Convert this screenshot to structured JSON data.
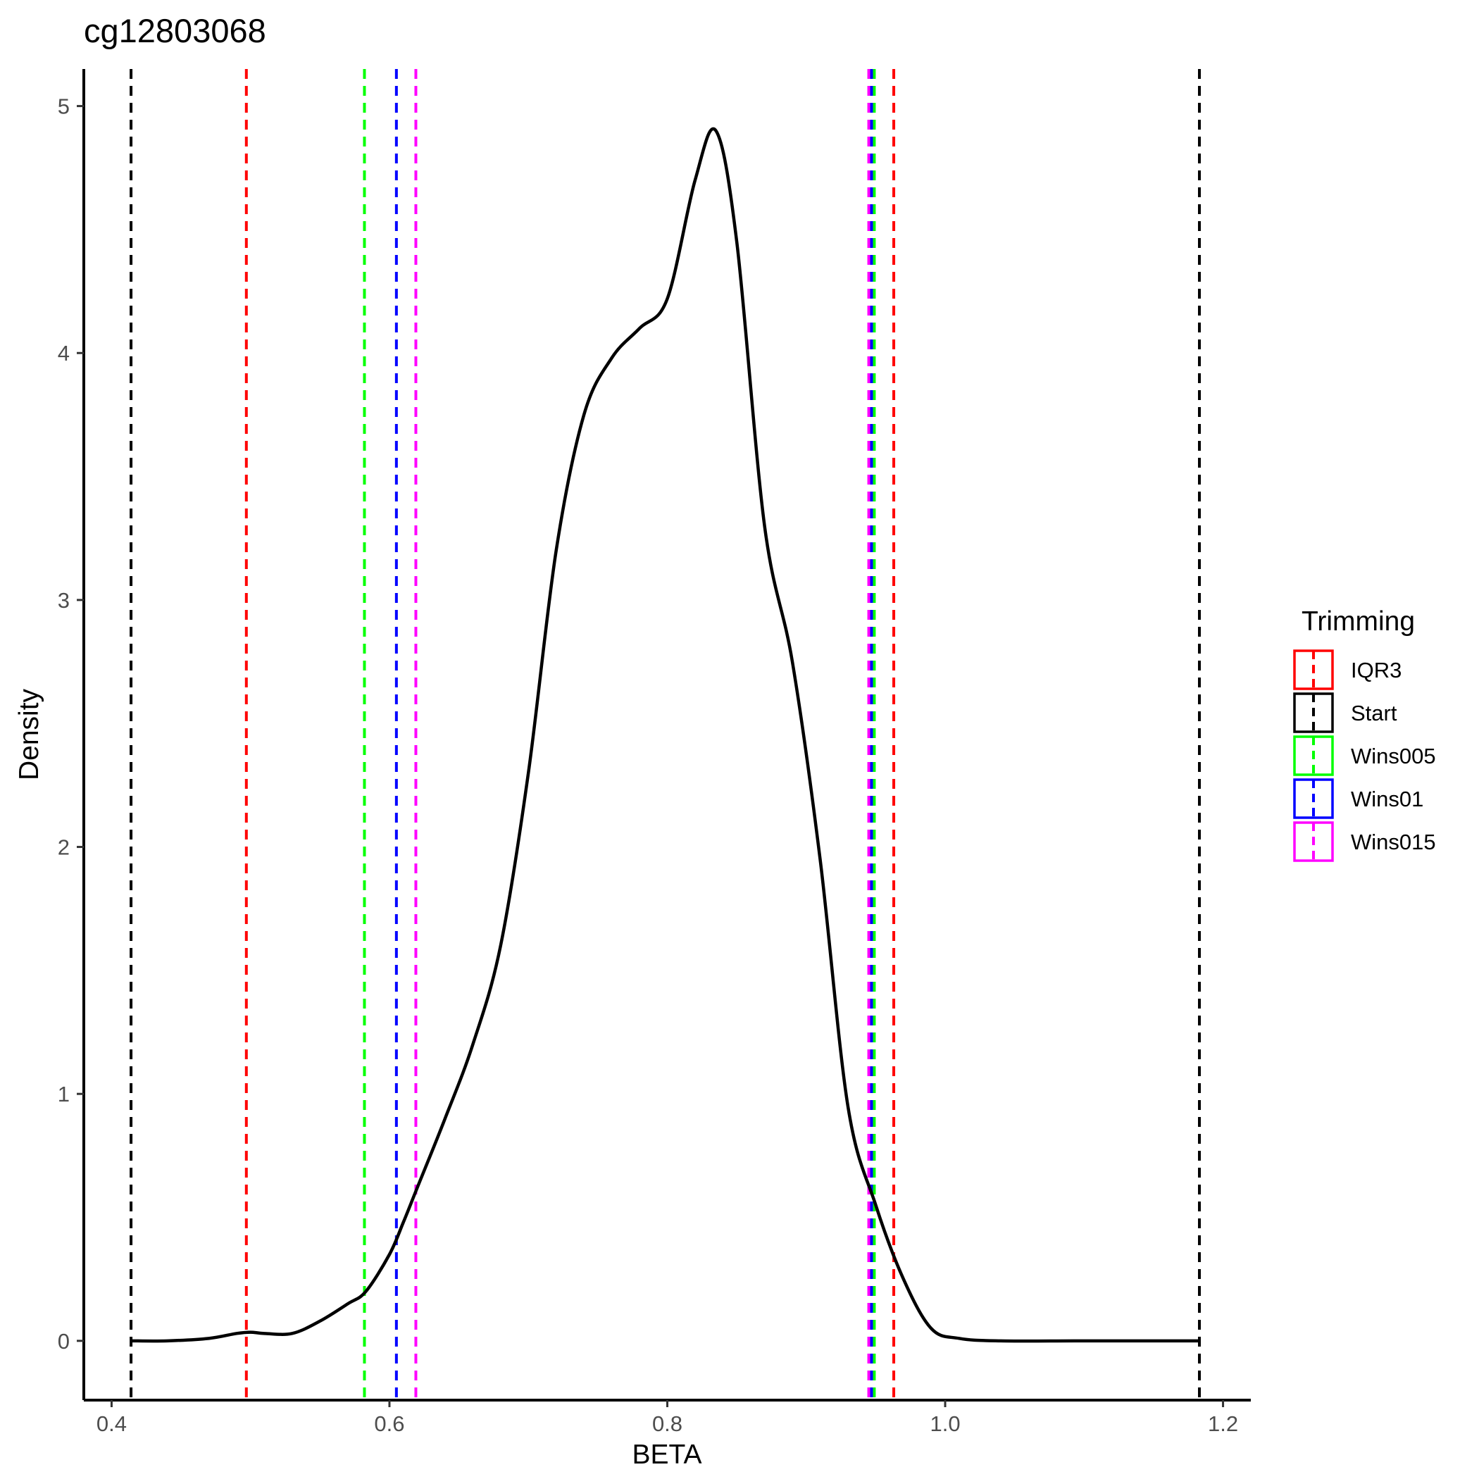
{
  "chart_data": {
    "type": "line",
    "title": "cg12803068",
    "xlabel": "BETA",
    "ylabel": "Density",
    "xlim": [
      0.38,
      1.22
    ],
    "ylim": [
      -0.24,
      5.15
    ],
    "x_ticks": [
      0.4,
      0.6,
      0.8,
      1.0,
      1.2
    ],
    "x_tick_labels": [
      "0.4",
      "0.6",
      "0.8",
      "1.0",
      "1.2"
    ],
    "y_ticks": [
      0,
      1,
      2,
      3,
      4,
      5
    ],
    "y_tick_labels": [
      "0",
      "1",
      "2",
      "3",
      "4",
      "5"
    ],
    "grid": false,
    "density": {
      "x": [
        0.414,
        0.44,
        0.47,
        0.49,
        0.5,
        0.51,
        0.53,
        0.55,
        0.57,
        0.583,
        0.6,
        0.61,
        0.62,
        0.64,
        0.66,
        0.68,
        0.7,
        0.72,
        0.74,
        0.76,
        0.78,
        0.8,
        0.82,
        0.835,
        0.85,
        0.87,
        0.89,
        0.91,
        0.93,
        0.95,
        0.97,
        0.99,
        1.01,
        1.04,
        1.1,
        1.183
      ],
      "y": [
        0.0,
        0.0,
        0.01,
        0.03,
        0.035,
        0.03,
        0.03,
        0.08,
        0.15,
        0.2,
        0.35,
        0.48,
        0.62,
        0.9,
        1.2,
        1.6,
        2.3,
        3.2,
        3.75,
        3.98,
        4.1,
        4.22,
        4.7,
        4.9,
        4.45,
        3.3,
        2.75,
        1.95,
        0.95,
        0.55,
        0.25,
        0.05,
        0.01,
        0.0,
        0.0,
        0.0
      ]
    },
    "vlines": [
      {
        "name": "IQR3",
        "color": "#ff0000",
        "x": [
          0.497,
          0.963
        ]
      },
      {
        "name": "Start",
        "color": "#000000",
        "x": [
          0.414,
          1.183
        ]
      },
      {
        "name": "Wins005",
        "color": "#00ff00",
        "x": [
          0.582,
          0.949
        ]
      },
      {
        "name": "Wins01",
        "color": "#0000ff",
        "x": [
          0.605,
          0.947
        ]
      },
      {
        "name": "Wins015",
        "color": "#ff00ff",
        "x": [
          0.619,
          0.945
        ]
      }
    ],
    "legend": {
      "title": "Trimming",
      "position": "right",
      "entries": [
        {
          "label": "IQR3",
          "color": "#ff0000"
        },
        {
          "label": "Start",
          "color": "#000000"
        },
        {
          "label": "Wins005",
          "color": "#00ff00"
        },
        {
          "label": "Wins01",
          "color": "#0000ff"
        },
        {
          "label": "Wins015",
          "color": "#ff00ff"
        }
      ]
    }
  }
}
